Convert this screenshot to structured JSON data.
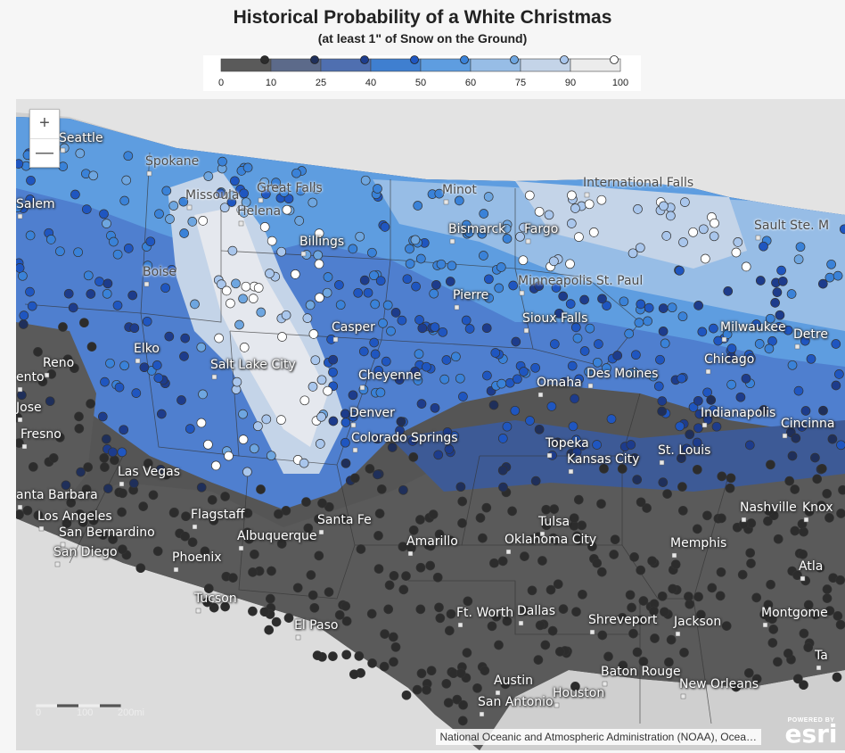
{
  "title": "Historical Probability of a White Christmas",
  "subtitle": "(at least 1\" of Snow on the Ground)",
  "legend": {
    "ticks": [
      "0",
      "10",
      "25",
      "40",
      "50",
      "60",
      "75",
      "90",
      "100"
    ],
    "bins": [
      {
        "from": 0,
        "to": 10,
        "color": "#5a5a5a",
        "dot": "#2c2c2c"
      },
      {
        "from": 10,
        "to": 25,
        "color": "#5c6a8a",
        "dot": "#1f2f5a"
      },
      {
        "from": 25,
        "to": 40,
        "color": "#4f6fb0",
        "dot": "#1d3c8c"
      },
      {
        "from": 40,
        "to": 50,
        "color": "#3f7fd0",
        "dot": "#1f56c0"
      },
      {
        "from": 50,
        "to": 60,
        "color": "#5e9de0",
        "dot": "#3a82d8"
      },
      {
        "from": 60,
        "to": 75,
        "color": "#97bde6",
        "dot": "#6ea6e0"
      },
      {
        "from": 75,
        "to": 90,
        "color": "#c4d4e8",
        "dot": "#a9c6ec"
      },
      {
        "from": 90,
        "to": 100,
        "color": "#ececec",
        "dot": "#ffffff"
      }
    ]
  },
  "map": {
    "zoom_in": "+",
    "zoom_out": "—",
    "cities": [
      {
        "name": "Seattle",
        "style": "white"
      },
      {
        "name": "Spokane",
        "style": "light"
      },
      {
        "name": "Missoula",
        "style": "light"
      },
      {
        "name": "Great Falls",
        "style": "light"
      },
      {
        "name": "Helena",
        "style": "light"
      },
      {
        "name": "Minot",
        "style": "light"
      },
      {
        "name": "International Falls",
        "style": "light"
      },
      {
        "name": "Sault Ste. M",
        "style": "light"
      },
      {
        "name": "Salem",
        "style": "white"
      },
      {
        "name": "Billings",
        "style": "white"
      },
      {
        "name": "Bismarck",
        "style": "white"
      },
      {
        "name": "Fargo",
        "style": "white"
      },
      {
        "name": "Boise",
        "style": "light"
      },
      {
        "name": "Pierre",
        "style": "white"
      },
      {
        "name": "Minneapolis St. Paul",
        "style": "light"
      },
      {
        "name": "Sioux Falls",
        "style": "white"
      },
      {
        "name": "Casper",
        "style": "white"
      },
      {
        "name": "Milwaukee",
        "style": "white"
      },
      {
        "name": "Detre",
        "style": "white"
      },
      {
        "name": "Elko",
        "style": "white"
      },
      {
        "name": "Reno",
        "style": "white"
      },
      {
        "name": "ento",
        "style": "white"
      },
      {
        "name": "Salt Lake City",
        "style": "white"
      },
      {
        "name": "Cheyenne",
        "style": "white"
      },
      {
        "name": "Chicago",
        "style": "white"
      },
      {
        "name": "Des Moines",
        "style": "white"
      },
      {
        "name": "Omaha",
        "style": "white"
      },
      {
        "name": "Jose",
        "style": "white"
      },
      {
        "name": "Denver",
        "style": "white"
      },
      {
        "name": "Indianapolis",
        "style": "white"
      },
      {
        "name": "Cincinna",
        "style": "white"
      },
      {
        "name": "Fresno",
        "style": "white"
      },
      {
        "name": "Colorado Springs",
        "style": "white"
      },
      {
        "name": "Topeka",
        "style": "white"
      },
      {
        "name": "St. Louis",
        "style": "white"
      },
      {
        "name": "Kansas City",
        "style": "white"
      },
      {
        "name": "Las Vegas",
        "style": "white"
      },
      {
        "name": "anta Barbara",
        "style": "white"
      },
      {
        "name": "Nashville",
        "style": "white"
      },
      {
        "name": "Knox",
        "style": "white"
      },
      {
        "name": "Los Angeles",
        "style": "white"
      },
      {
        "name": "Flagstaff",
        "style": "white"
      },
      {
        "name": "Santa Fe",
        "style": "white"
      },
      {
        "name": "Tulsa",
        "style": "white"
      },
      {
        "name": "San Bernardino",
        "style": "white"
      },
      {
        "name": "Albuquerque",
        "style": "white"
      },
      {
        "name": "Amarillo",
        "style": "white"
      },
      {
        "name": "Oklahoma City",
        "style": "white"
      },
      {
        "name": "Memphis",
        "style": "white"
      },
      {
        "name": "San Diego",
        "style": "white"
      },
      {
        "name": "Phoenix",
        "style": "white"
      },
      {
        "name": "Atla",
        "style": "white"
      },
      {
        "name": "Tucson",
        "style": "white"
      },
      {
        "name": "Ft. Worth",
        "style": "white"
      },
      {
        "name": "Dallas",
        "style": "white"
      },
      {
        "name": "Shreveport",
        "style": "white"
      },
      {
        "name": "Jackson",
        "style": "white"
      },
      {
        "name": "Montgome",
        "style": "white"
      },
      {
        "name": "El Paso",
        "style": "white"
      },
      {
        "name": "Ta",
        "style": "white"
      },
      {
        "name": "Baton Rouge",
        "style": "white"
      },
      {
        "name": "Austin",
        "style": "white"
      },
      {
        "name": "New Orleans",
        "style": "white"
      },
      {
        "name": "Houston",
        "style": "white"
      },
      {
        "name": "San Antonio",
        "style": "white"
      }
    ],
    "scale_bar": {
      "labels": [
        "0",
        "100",
        "200mi"
      ]
    },
    "attribution": "National Oceanic and Atmospheric Administration (NOAA), Ocea…",
    "powered_by": "POWERED BY",
    "logo": "esri"
  }
}
